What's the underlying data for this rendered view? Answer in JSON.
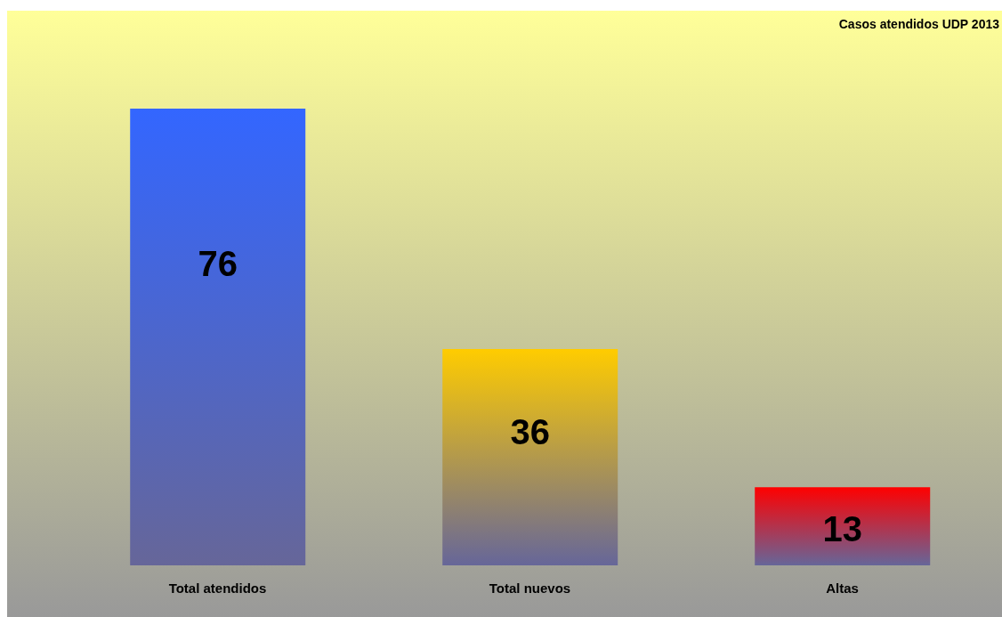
{
  "chart_data": {
    "type": "bar",
    "title": "Casos atendidos UDP 2013",
    "categories": [
      "Total atendidos",
      "Total nuevos",
      "Altas"
    ],
    "values": [
      76,
      36,
      13
    ],
    "colors": [
      "#3366ff",
      "#ffcc00",
      "#ff0000"
    ],
    "data_labels": true
  }
}
